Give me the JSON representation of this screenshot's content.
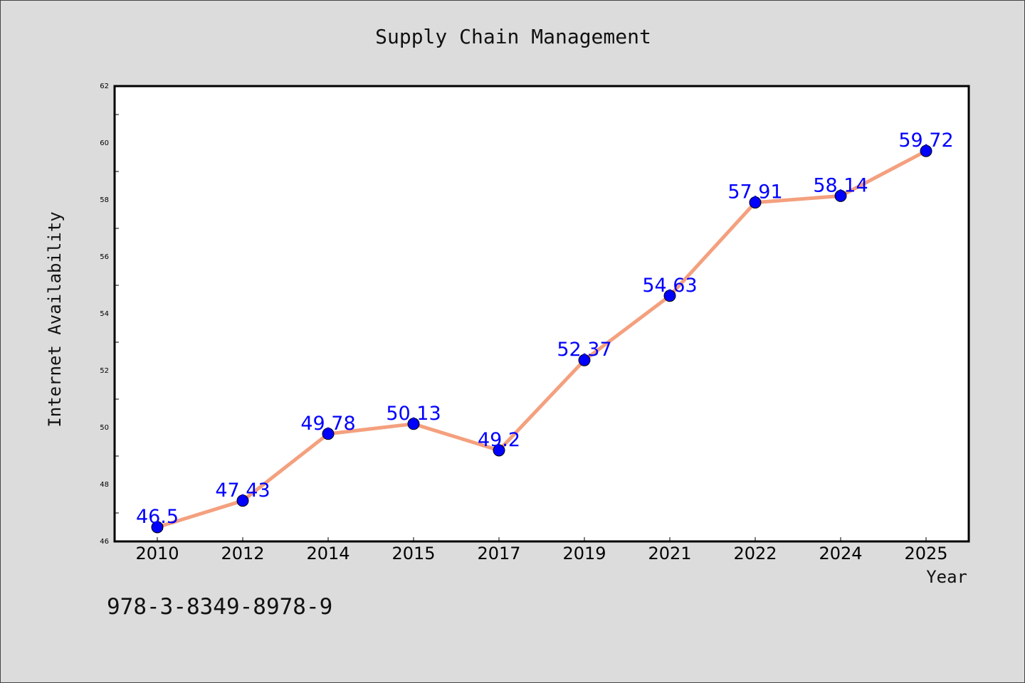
{
  "chart_data": {
    "type": "line",
    "title": "Supply Chain Management",
    "xlabel": "Year",
    "ylabel": "Internet Availability",
    "categories": [
      "2010",
      "2012",
      "2014",
      "2015",
      "2017",
      "2019",
      "2021",
      "2022",
      "2024",
      "2025"
    ],
    "series": [
      {
        "values": [
          46.5,
          47.43,
          49.78,
          50.13,
          49.2,
          52.37,
          54.63,
          57.91,
          58.14,
          59.72
        ],
        "labels": [
          "46.5",
          "47.43",
          "49.78",
          "50.13",
          "49.2",
          "52.37",
          "54.63",
          "57.91",
          "58.14",
          "59.72"
        ]
      }
    ],
    "ylim": [
      46,
      62
    ],
    "yticks": [
      "46",
      "48",
      "50",
      "52",
      "54",
      "56",
      "58",
      "60",
      "62"
    ],
    "grid": false,
    "colors": {
      "line": "#f4a07e",
      "marker": "#0000ff",
      "data_label": "#0000ff",
      "background": "#dcdcdc",
      "plot_background": "#ffffff"
    }
  },
  "footer": {
    "isbn": "978-3-8349-8978-9"
  }
}
